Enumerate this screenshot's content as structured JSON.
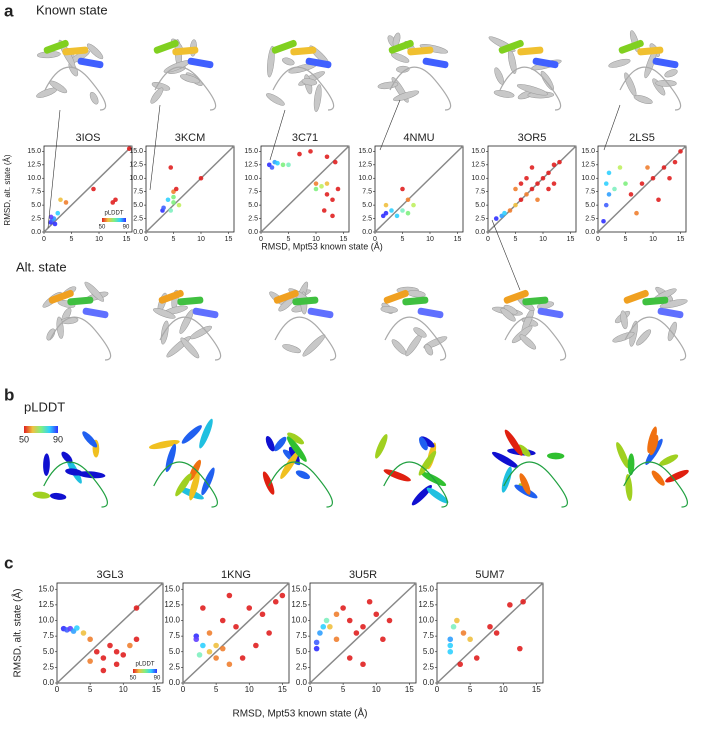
{
  "panel_a": {
    "label": "a",
    "known_state": "Known state",
    "alt_state": "Alt. state",
    "y_label": "RMSD, alt. state (Å)",
    "x_label": "RMSD, Mpt53 known state (Å)"
  },
  "panel_b": {
    "label": "b",
    "title": "pLDDT",
    "colorbar_ticks": [
      50,
      90
    ]
  },
  "panel_c": {
    "label": "c",
    "y_label": "RMSD, alt. state (Å)",
    "x_label": "RMSD, Mpt53 known state (Å)"
  },
  "chart_data": [
    {
      "type": "scatter",
      "title": "3IOS",
      "x": [
        1.2,
        1.5,
        1.8,
        2,
        1.3,
        2.5,
        3,
        4,
        9,
        15.5,
        13,
        12.5
      ],
      "values": [
        1.8,
        2.2,
        2.5,
        1.5,
        2.8,
        3.5,
        6,
        5.5,
        8,
        15.5,
        6,
        5.5
      ],
      "colors": [
        "#3030ff",
        "#4060ff",
        "#30a0ff",
        "#3030ff",
        "#6040ff",
        "#30d0ff",
        "#f0c040",
        "#f08030",
        "#e02020",
        "#e02020",
        "#e02020",
        "#e02020"
      ],
      "xlim": [
        0,
        16
      ],
      "ylim": [
        0,
        16
      ],
      "xticks": [
        0,
        5,
        10,
        15
      ],
      "yticks": [
        {
          "value": 0,
          "label": "0.0"
        },
        2.5,
        {
          "value": 5,
          "label": "5.0"
        },
        7.5,
        {
          "value": 10,
          "label": "10.0"
        },
        12.5,
        {
          "value": 15,
          "label": "15.0"
        }
      ],
      "colorbar": {
        "label": "pLDDT",
        "ticks": [
          50,
          90
        ]
      }
    },
    {
      "type": "scatter",
      "title": "3KCM",
      "x": [
        3,
        3.2,
        4,
        5,
        5,
        4.5,
        6,
        4.5,
        10,
        5,
        5.5
      ],
      "values": [
        4,
        4.5,
        6,
        5.5,
        6.5,
        4,
        5,
        12,
        10,
        7.5,
        8
      ],
      "colors": [
        "#3030ff",
        "#4060ff",
        "#30d0ff",
        "#80f080",
        "#80f080",
        "#80f0c0",
        "#c0f060",
        "#e02020",
        "#e02020",
        "#f08030",
        "#e02020"
      ],
      "xlim": [
        0,
        16
      ],
      "ylim": [
        0,
        16
      ],
      "xticks": [
        0,
        5,
        10,
        15
      ],
      "yticks": [
        {
          "value": 0,
          "label": "0.0"
        },
        2.5,
        {
          "value": 5,
          "label": "5.0"
        },
        7.5,
        {
          "value": 10,
          "label": "10.0"
        },
        12.5,
        {
          "value": 15,
          "label": "15.0"
        }
      ]
    },
    {
      "type": "scatter",
      "title": "3C71",
      "x": [
        1.5,
        2,
        2.5,
        3,
        4,
        5,
        7,
        9,
        12,
        13.5,
        10,
        12,
        13,
        11.5,
        14,
        13,
        10,
        11,
        12
      ],
      "values": [
        12.5,
        12,
        13,
        12.8,
        12.5,
        12.5,
        14.5,
        15,
        14,
        13,
        9,
        7,
        6,
        4,
        8,
        3,
        8,
        8.5,
        9
      ],
      "colors": [
        "#3030ff",
        "#4060ff",
        "#30a0ff",
        "#30d0ff",
        "#80f080",
        "#80f0c0",
        "#e02020",
        "#e02020",
        "#e02020",
        "#e02020",
        "#f08030",
        "#e02020",
        "#e02020",
        "#e02020",
        "#e02020",
        "#e02020",
        "#80f080",
        "#c0f060",
        "#f0c040"
      ],
      "xlim": [
        0,
        16
      ],
      "ylim": [
        0,
        16
      ],
      "xticks": [
        0,
        5,
        10,
        15
      ],
      "yticks": [
        {
          "value": 0,
          "label": "0.0"
        },
        2.5,
        {
          "value": 5,
          "label": "5.0"
        },
        7.5,
        {
          "value": 10,
          "label": "10.0"
        },
        12.5,
        {
          "value": 15,
          "label": "15.0"
        }
      ]
    },
    {
      "type": "scatter",
      "title": "4NMU",
      "x": [
        2,
        3,
        4,
        5,
        6,
        7,
        5,
        6,
        2,
        1.5
      ],
      "values": [
        3.5,
        4,
        3,
        4,
        3.5,
        5,
        8,
        6,
        5,
        3
      ],
      "colors": [
        "#3030ff",
        "#30d0ff",
        "#30d0ff",
        "#80f0c0",
        "#80f080",
        "#c0f060",
        "#e02020",
        "#f08030",
        "#f0c040",
        "#3030ff"
      ],
      "xlim": [
        0,
        16
      ],
      "ylim": [
        0,
        16
      ],
      "xticks": [
        0,
        5,
        10,
        15
      ],
      "yticks": [
        {
          "value": 0,
          "label": "0.0"
        },
        2.5,
        {
          "value": 5,
          "label": "5.0"
        },
        7.5,
        {
          "value": 10,
          "label": "10.0"
        },
        12.5,
        {
          "value": 15,
          "label": "15.0"
        }
      ]
    },
    {
      "type": "scatter",
      "title": "3OR5",
      "x": [
        1.5,
        2.5,
        3,
        4,
        5,
        6,
        7,
        8,
        9,
        10,
        11,
        12,
        13,
        11,
        9,
        6,
        7,
        12,
        8,
        5
      ],
      "values": [
        2.5,
        3,
        3.5,
        4,
        5,
        6,
        7,
        8,
        9,
        10,
        11,
        12.5,
        13,
        8,
        6,
        9,
        10,
        9,
        12,
        8
      ],
      "colors": [
        "#3030ff",
        "#30a0ff",
        "#30d0ff",
        "#f08030",
        "#f0c040",
        "#e02020",
        "#f08030",
        "#e02020",
        "#e02020",
        "#e02020",
        "#e02020",
        "#e02020",
        "#e02020",
        "#e02020",
        "#f08030",
        "#e02020",
        "#e02020",
        "#e02020",
        "#e02020",
        "#f08030"
      ],
      "xlim": [
        0,
        16
      ],
      "ylim": [
        0,
        16
      ],
      "xticks": [
        0,
        5,
        10,
        15
      ],
      "yticks": [
        {
          "value": 0,
          "label": "0.0"
        },
        2.5,
        {
          "value": 5,
          "label": "5.0"
        },
        7.5,
        {
          "value": 10,
          "label": "10.0"
        },
        12.5,
        {
          "value": 15,
          "label": "15.0"
        }
      ]
    },
    {
      "type": "scatter",
      "title": "2LS5",
      "x": [
        1,
        1.5,
        2,
        1.5,
        2,
        4,
        5,
        3,
        6,
        8,
        10,
        12,
        14,
        15,
        11,
        9,
        13,
        7
      ],
      "values": [
        2,
        5,
        7,
        9,
        11,
        12,
        9,
        8,
        7,
        9,
        10,
        12,
        13,
        15,
        6,
        12,
        10,
        3.5
      ],
      "colors": [
        "#3030ff",
        "#4060ff",
        "#30a0ff",
        "#30d0ff",
        "#30d0ff",
        "#c0f060",
        "#80f080",
        "#80f0c0",
        "#e02020",
        "#e02020",
        "#e02020",
        "#e02020",
        "#e02020",
        "#e02020",
        "#e02020",
        "#f08030",
        "#e02020",
        "#f08030"
      ],
      "xlim": [
        0,
        16
      ],
      "ylim": [
        0,
        16
      ],
      "xticks": [
        0,
        5,
        10,
        15
      ],
      "yticks": [
        {
          "value": 0,
          "label": "0.0"
        },
        2.5,
        {
          "value": 5,
          "label": "5.0"
        },
        7.5,
        {
          "value": 10,
          "label": "10.0"
        },
        12.5,
        {
          "value": 15,
          "label": "15.0"
        }
      ]
    },
    {
      "type": "scatter",
      "title": "3GL3",
      "x": [
        1,
        1.5,
        2,
        2.5,
        3,
        4,
        5,
        6,
        7,
        8,
        9,
        10,
        11,
        12,
        7,
        9,
        12,
        5
      ],
      "values": [
        8.7,
        8.5,
        8.7,
        8.3,
        8.8,
        8,
        7,
        5,
        4,
        6,
        5,
        4.5,
        6,
        7,
        2,
        3,
        12,
        3.5
      ],
      "colors": [
        "#3030ff",
        "#4060ff",
        "#6040ff",
        "#30a0ff",
        "#30d0ff",
        "#f0c040",
        "#f08030",
        "#e02020",
        "#e02020",
        "#e02020",
        "#e02020",
        "#e02020",
        "#f08030",
        "#e02020",
        "#e02020",
        "#e02020",
        "#e02020",
        "#f08030"
      ],
      "xlim": [
        0,
        16
      ],
      "ylim": [
        0,
        16
      ],
      "xticks": [
        0,
        5,
        10,
        15
      ],
      "yticks": [
        {
          "value": 0,
          "label": "0.0"
        },
        2.5,
        {
          "value": 5,
          "label": "5.0"
        },
        7.5,
        {
          "value": 10,
          "label": "10.0"
        },
        12.5,
        {
          "value": 15,
          "label": "15.0"
        }
      ],
      "colorbar": {
        "label": "pLDDT",
        "ticks": [
          50,
          90
        ]
      }
    },
    {
      "type": "scatter",
      "title": "1KNG",
      "x": [
        2,
        2,
        3,
        2.5,
        4,
        5,
        6,
        7,
        5,
        3,
        6,
        8,
        10,
        12,
        14,
        15,
        9,
        11,
        7,
        4,
        13
      ],
      "values": [
        7.5,
        7,
        6,
        4.5,
        5,
        4,
        5.5,
        3,
        6,
        12,
        10,
        9,
        12,
        11,
        13,
        14,
        4,
        6,
        14,
        8,
        8
      ],
      "colors": [
        "#3030ff",
        "#6040ff",
        "#30d0ff",
        "#80f0c0",
        "#f0c040",
        "#f08030",
        "#f08030",
        "#f08030",
        "#f0c040",
        "#e02020",
        "#e02020",
        "#e02020",
        "#e02020",
        "#e02020",
        "#e02020",
        "#e02020",
        "#e02020",
        "#e02020",
        "#e02020",
        "#f08030",
        "#e02020"
      ],
      "xlim": [
        0,
        16
      ],
      "ylim": [
        0,
        16
      ],
      "xticks": [
        0,
        5,
        10,
        15
      ],
      "yticks": [
        {
          "value": 0,
          "label": "0.0"
        },
        2.5,
        {
          "value": 5,
          "label": "5.0"
        },
        7.5,
        {
          "value": 10,
          "label": "10.0"
        },
        12.5,
        {
          "value": 15,
          "label": "15.0"
        }
      ]
    },
    {
      "type": "scatter",
      "title": "3U5R",
      "x": [
        1,
        1,
        1.5,
        2,
        2.5,
        3,
        4,
        5,
        6,
        7,
        8,
        9,
        10,
        6,
        8,
        11,
        12,
        4
      ],
      "values": [
        5.5,
        6.5,
        8,
        9,
        10,
        9,
        7,
        12,
        10,
        8,
        9,
        13,
        11,
        4,
        3,
        7,
        10,
        11
      ],
      "colors": [
        "#3030ff",
        "#4060ff",
        "#30a0ff",
        "#30d0ff",
        "#80f0c0",
        "#f0c040",
        "#f08030",
        "#e02020",
        "#e02020",
        "#e02020",
        "#e02020",
        "#e02020",
        "#e02020",
        "#e02020",
        "#e02020",
        "#e02020",
        "#e02020",
        "#f08030"
      ],
      "xlim": [
        0,
        16
      ],
      "ylim": [
        0,
        16
      ],
      "xticks": [
        0,
        5,
        10,
        15
      ],
      "yticks": [
        {
          "value": 0,
          "label": "0.0"
        },
        2.5,
        {
          "value": 5,
          "label": "5.0"
        },
        7.5,
        {
          "value": 10,
          "label": "10.0"
        },
        12.5,
        {
          "value": 15,
          "label": "15.0"
        }
      ]
    },
    {
      "type": "scatter",
      "title": "5UM7",
      "x": [
        2,
        2,
        2.5,
        2,
        4,
        5,
        3,
        6,
        8,
        9,
        11,
        13,
        12.5,
        3.5
      ],
      "values": [
        6,
        7,
        9,
        5,
        8,
        7,
        10,
        4,
        9,
        8,
        12.5,
        13,
        5.5,
        3
      ],
      "colors": [
        "#30d0ff",
        "#30a0ff",
        "#80f0c0",
        "#30d0ff",
        "#f08030",
        "#f0c040",
        "#f0c040",
        "#e02020",
        "#e02020",
        "#e02020",
        "#e02020",
        "#e02020",
        "#e02020",
        "#e02020"
      ],
      "xlim": [
        0,
        16
      ],
      "ylim": [
        0,
        16
      ],
      "xticks": [
        0,
        5,
        10,
        15
      ],
      "yticks": [
        {
          "value": 0,
          "label": "0.0"
        },
        2.5,
        {
          "value": 5,
          "label": "5.0"
        },
        7.5,
        {
          "value": 10,
          "label": "10.0"
        },
        12.5,
        {
          "value": 15,
          "label": "15.0"
        }
      ]
    }
  ]
}
